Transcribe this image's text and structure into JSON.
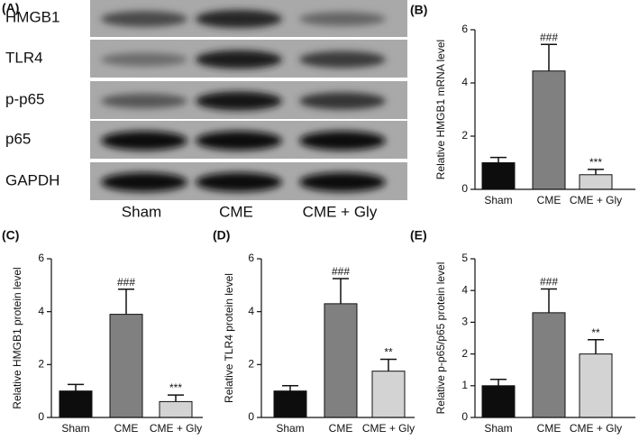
{
  "blot": {
    "panel_label": "(A)",
    "rows": [
      "HMGB1",
      "TLR4",
      "p-p65",
      "p65",
      "GAPDH"
    ],
    "lanes": [
      "Sham",
      "CME",
      "CME + Gly"
    ]
  },
  "chart_data": [
    {
      "type": "bar",
      "panel_label": "(B)",
      "ylabel": "Relative HMGB1 mRNA level",
      "categories": [
        "Sham",
        "CME",
        "CME + Gly"
      ],
      "values": [
        1.0,
        4.45,
        0.55
      ],
      "errors": [
        0.2,
        1.0,
        0.2
      ],
      "annotations": [
        null,
        "###",
        "***"
      ],
      "colors": [
        "#0d0d0d",
        "#808080",
        "#d3d3d3"
      ],
      "ylim": [
        0,
        6
      ],
      "yticks": [
        0,
        2,
        4,
        6
      ]
    },
    {
      "type": "bar",
      "panel_label": "(C)",
      "ylabel": "Relative HMGB1 protein level",
      "categories": [
        "Sham",
        "CME",
        "CME + Gly"
      ],
      "values": [
        1.0,
        3.9,
        0.6
      ],
      "errors": [
        0.25,
        0.95,
        0.25
      ],
      "annotations": [
        null,
        "###",
        "***"
      ],
      "colors": [
        "#0d0d0d",
        "#808080",
        "#d3d3d3"
      ],
      "ylim": [
        0,
        6
      ],
      "yticks": [
        0,
        2,
        4,
        6
      ]
    },
    {
      "type": "bar",
      "panel_label": "(D)",
      "ylabel": "Relative TLR4 protein level",
      "categories": [
        "Sham",
        "CME",
        "CME + Gly"
      ],
      "values": [
        1.0,
        4.3,
        1.75
      ],
      "errors": [
        0.2,
        0.95,
        0.45
      ],
      "annotations": [
        null,
        "###",
        "**"
      ],
      "colors": [
        "#0d0d0d",
        "#808080",
        "#d3d3d3"
      ],
      "ylim": [
        0,
        6
      ],
      "yticks": [
        0,
        2,
        4,
        6
      ]
    },
    {
      "type": "bar",
      "panel_label": "(E)",
      "ylabel": "Relative p-p65/p65 protein level",
      "categories": [
        "Sham",
        "CME",
        "CME + Gly"
      ],
      "values": [
        1.0,
        3.3,
        2.0
      ],
      "errors": [
        0.2,
        0.75,
        0.45
      ],
      "annotations": [
        null,
        "###",
        "**"
      ],
      "colors": [
        "#0d0d0d",
        "#808080",
        "#d3d3d3"
      ],
      "ylim": [
        0,
        5
      ],
      "yticks": [
        0,
        1,
        2,
        3,
        4,
        5
      ]
    }
  ]
}
